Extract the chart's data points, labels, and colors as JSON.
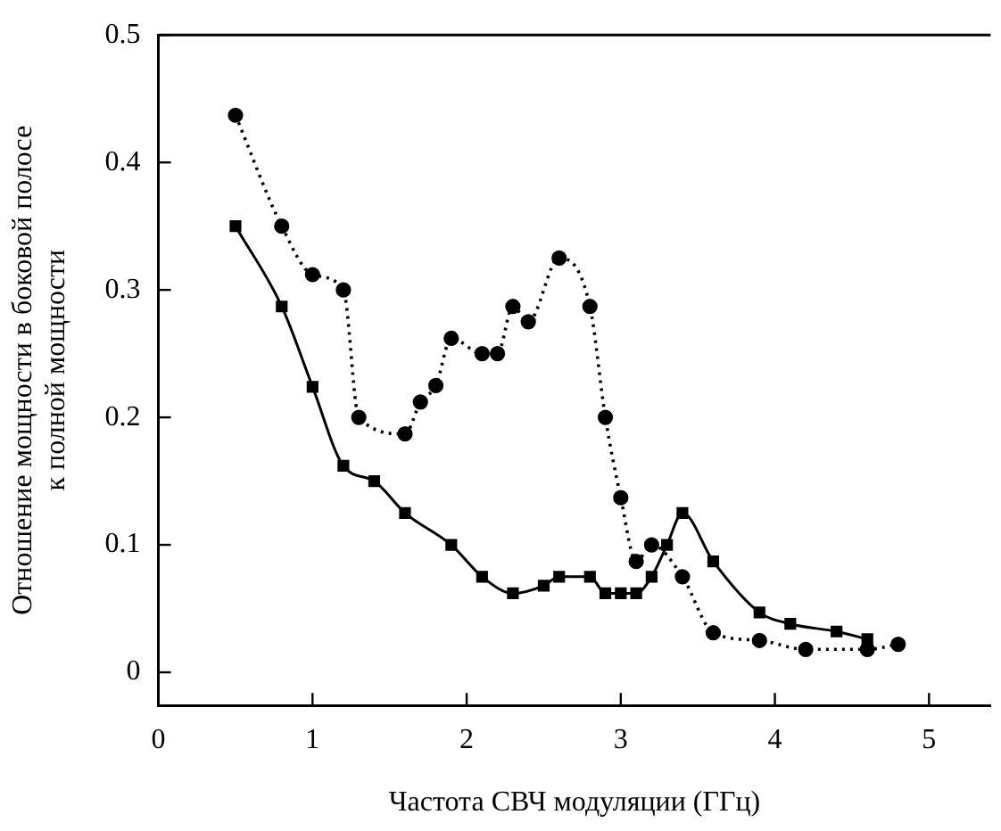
{
  "chart_data": {
    "type": "line",
    "xlabel": "Частота СВЧ модуляции (ГГц)",
    "ylabel": "Отношение мощности в боковой полосе\nк полной мощности",
    "xlim": [
      0,
      5.4
    ],
    "xticks": [
      0,
      1,
      2,
      3,
      4,
      5
    ],
    "ylim": [
      -0.026,
      0.5
    ],
    "yticks": [
      0,
      0.1,
      0.2,
      0.3,
      0.4,
      0.5
    ],
    "grid": false,
    "legend": false,
    "series": [
      {
        "color": "#000000",
        "marker": "square",
        "line_style": "solid",
        "x": [
          0.5,
          0.8,
          1.0,
          1.2,
          1.4,
          1.6,
          1.9,
          2.1,
          2.3,
          2.5,
          2.6,
          2.8,
          2.9,
          3.0,
          3.1,
          3.2,
          3.3,
          3.4,
          3.6,
          3.9,
          4.1,
          4.4,
          4.6
        ],
        "values": [
          0.35,
          0.287,
          0.224,
          0.162,
          0.15,
          0.125,
          0.1,
          0.075,
          0.062,
          0.068,
          0.075,
          0.075,
          0.062,
          0.062,
          0.062,
          0.075,
          0.1,
          0.125,
          0.087,
          0.047,
          0.038,
          0.032,
          0.026
        ]
      },
      {
        "color": "#000000",
        "marker": "circle",
        "line_style": "dotted",
        "x": [
          0.5,
          0.8,
          1.0,
          1.2,
          1.3,
          1.6,
          1.7,
          1.8,
          1.9,
          2.1,
          2.2,
          2.3,
          2.4,
          2.6,
          2.8,
          2.9,
          3.0,
          3.1,
          3.2,
          3.4,
          3.6,
          3.9,
          4.2,
          4.6,
          4.8
        ],
        "values": [
          0.437,
          0.35,
          0.312,
          0.3,
          0.2,
          0.187,
          0.212,
          0.225,
          0.262,
          0.25,
          0.25,
          0.287,
          0.275,
          0.325,
          0.287,
          0.2,
          0.137,
          0.087,
          0.1,
          0.075,
          0.031,
          0.025,
          0.018,
          0.018,
          0.022
        ]
      }
    ]
  }
}
